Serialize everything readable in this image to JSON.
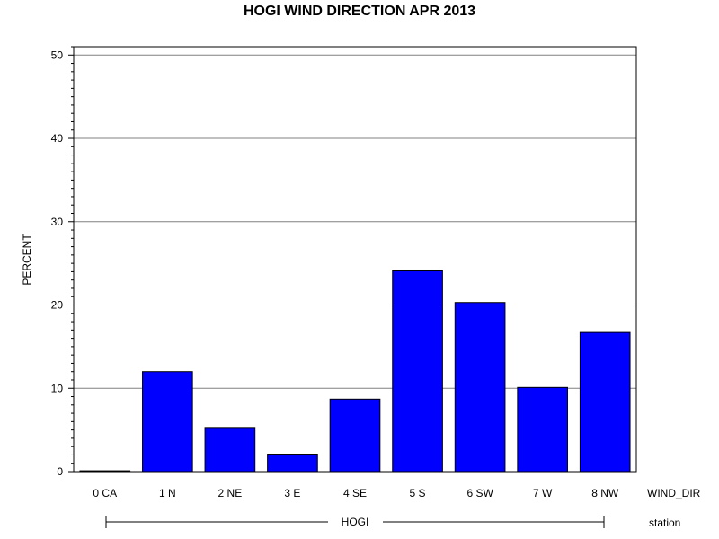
{
  "chart_data": {
    "type": "bar",
    "title": "HOGI WIND DIRECTION APR 2013",
    "ylabel": "PERCENT",
    "xlabel": "WIND_DIR",
    "group_axis_label": "station",
    "group_label": "HOGI",
    "categories": [
      "0 CA",
      "1 N",
      "2 NE",
      "3 E",
      "4 SE",
      "5 S",
      "6 SW",
      "7 W",
      "8 NW"
    ],
    "values": [
      0.1,
      12.0,
      5.3,
      2.1,
      8.7,
      24.1,
      20.3,
      10.1,
      16.7
    ],
    "ylim": [
      0,
      51
    ],
    "yticks": [
      0,
      10,
      20,
      30,
      40,
      50
    ],
    "grid": true,
    "bar_color": "#0000ff"
  }
}
